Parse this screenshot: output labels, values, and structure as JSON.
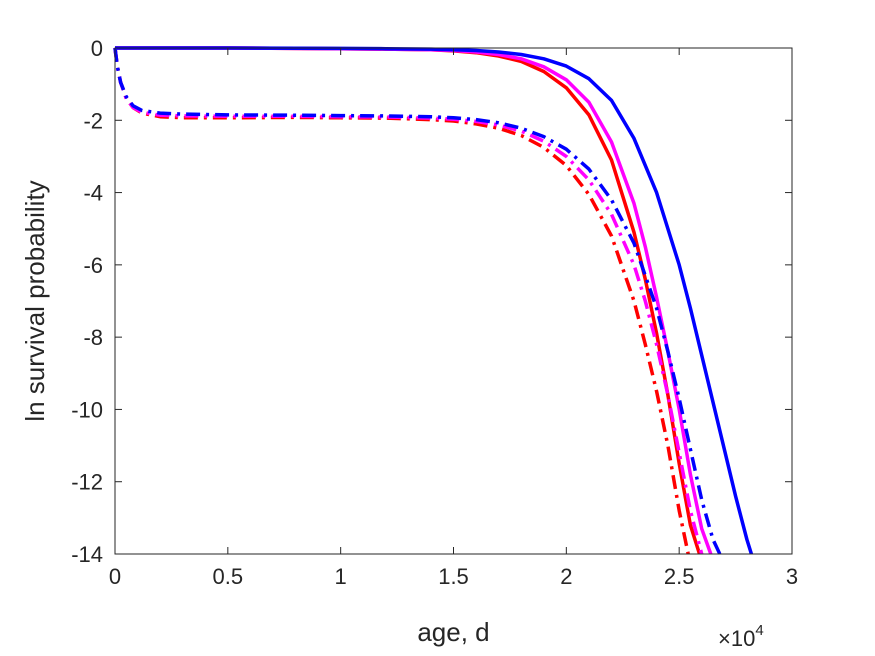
{
  "chart_data": {
    "type": "line",
    "xlabel": "age, d",
    "ylabel": "ln survival probability",
    "x_multiplier_label": "×10",
    "x_multiplier_exp": "4",
    "xlim": [
      0,
      30000
    ],
    "ylim": [
      -14,
      0
    ],
    "xticks": [
      0,
      5000,
      10000,
      15000,
      20000,
      25000,
      30000
    ],
    "xtick_labels": [
      "0",
      "0.5",
      "1",
      "1.5",
      "2",
      "2.5",
      "3"
    ],
    "yticks": [
      0,
      -2,
      -4,
      -6,
      -8,
      -10,
      -12,
      -14
    ],
    "ytick_labels": [
      "0",
      "-2",
      "-4",
      "-6",
      "-8",
      "-10",
      "-12",
      "-14"
    ],
    "grid": false,
    "box": true,
    "series": [
      {
        "color": "#ff0000",
        "style": "solid",
        "x": [
          0,
          5000,
          10000,
          12000,
          14000,
          15000,
          16000,
          17000,
          18000,
          19000,
          20000,
          21000,
          22000,
          23000,
          23500,
          24000,
          24500,
          25000,
          25500,
          25900
        ],
        "y": [
          0,
          0,
          -0.02,
          -0.03,
          -0.05,
          -0.08,
          -0.13,
          -0.22,
          -0.37,
          -0.65,
          -1.1,
          -1.85,
          -3.1,
          -5.1,
          -6.4,
          -7.9,
          -9.6,
          -11.5,
          -13.2,
          -14
        ]
      },
      {
        "color": "#ff00ff",
        "style": "solid",
        "x": [
          0,
          5000,
          10000,
          12000,
          14000,
          15000,
          16000,
          17000,
          18000,
          19000,
          20000,
          21000,
          22000,
          23000,
          23500,
          24000,
          24500,
          25000,
          25500,
          26000,
          26400
        ],
        "y": [
          0,
          0,
          -0.02,
          -0.03,
          -0.05,
          -0.07,
          -0.11,
          -0.18,
          -0.3,
          -0.52,
          -0.88,
          -1.5,
          -2.6,
          -4.3,
          -5.5,
          -6.9,
          -8.4,
          -10.0,
          -11.8,
          -13.3,
          -14
        ]
      },
      {
        "color": "#0000ff",
        "style": "solid",
        "x": [
          0,
          5000,
          10000,
          12000,
          14000,
          15000,
          16000,
          17000,
          18000,
          19000,
          20000,
          21000,
          22000,
          23000,
          24000,
          25000,
          25500,
          26000,
          26500,
          27000,
          27500,
          28000,
          28200
        ],
        "y": [
          0,
          0,
          -0.01,
          -0.02,
          -0.03,
          -0.05,
          -0.07,
          -0.11,
          -0.18,
          -0.3,
          -0.5,
          -0.85,
          -1.45,
          -2.5,
          -4.0,
          -6.0,
          -7.2,
          -8.5,
          -9.8,
          -11.1,
          -12.4,
          -13.6,
          -14
        ]
      },
      {
        "color": "#ff0000",
        "style": "dashdot",
        "x": [
          0,
          100,
          250,
          500,
          800,
          1200,
          2000,
          3000,
          5000,
          8000,
          10000,
          12000,
          14000,
          15000,
          16000,
          17000,
          18000,
          19000,
          20000,
          21000,
          22000,
          23000,
          23500,
          24000,
          24500,
          25000,
          25400
        ],
        "y": [
          0,
          -0.5,
          -0.95,
          -1.4,
          -1.65,
          -1.8,
          -1.9,
          -1.93,
          -1.93,
          -1.92,
          -1.93,
          -1.94,
          -1.98,
          -2.02,
          -2.1,
          -2.22,
          -2.42,
          -2.75,
          -3.25,
          -4.05,
          -5.2,
          -7.0,
          -8.2,
          -9.5,
          -11.0,
          -12.8,
          -14
        ]
      },
      {
        "color": "#ff00ff",
        "style": "dashdot",
        "x": [
          0,
          100,
          250,
          500,
          800,
          1200,
          2000,
          3000,
          5000,
          8000,
          10000,
          12000,
          14000,
          15000,
          16000,
          17000,
          18000,
          19000,
          20000,
          21000,
          22000,
          23000,
          23500,
          24000,
          24500,
          25000,
          25500,
          26000
        ],
        "y": [
          0,
          -0.5,
          -0.95,
          -1.4,
          -1.65,
          -1.78,
          -1.86,
          -1.88,
          -1.89,
          -1.89,
          -1.9,
          -1.91,
          -1.94,
          -1.97,
          -2.03,
          -2.13,
          -2.3,
          -2.58,
          -3.0,
          -3.65,
          -4.6,
          -6.0,
          -7.0,
          -8.2,
          -9.6,
          -11.2,
          -12.8,
          -14
        ]
      },
      {
        "color": "#0000ff",
        "style": "dashdot",
        "x": [
          0,
          100,
          250,
          500,
          800,
          1200,
          2000,
          3000,
          5000,
          8000,
          10000,
          12000,
          14000,
          15000,
          16000,
          17000,
          18000,
          19000,
          20000,
          21000,
          22000,
          23000,
          24000,
          24500,
          25000,
          25500,
          26000,
          26500,
          26800
        ],
        "y": [
          0,
          -0.5,
          -0.95,
          -1.35,
          -1.6,
          -1.73,
          -1.8,
          -1.83,
          -1.85,
          -1.86,
          -1.87,
          -1.88,
          -1.9,
          -1.93,
          -1.98,
          -2.07,
          -2.22,
          -2.45,
          -2.8,
          -3.35,
          -4.2,
          -5.4,
          -7.2,
          -8.4,
          -9.7,
          -11.1,
          -12.5,
          -13.6,
          -14
        ]
      }
    ]
  }
}
